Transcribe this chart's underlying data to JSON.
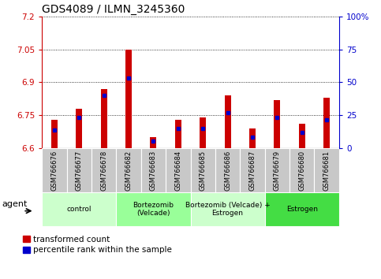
{
  "title": "GDS4089 / ILMN_3245360",
  "samples": [
    "GSM766676",
    "GSM766677",
    "GSM766678",
    "GSM766682",
    "GSM766683",
    "GSM766684",
    "GSM766685",
    "GSM766686",
    "GSM766687",
    "GSM766679",
    "GSM766680",
    "GSM766681"
  ],
  "red_values": [
    6.73,
    6.78,
    6.87,
    7.05,
    6.65,
    6.73,
    6.74,
    6.84,
    6.69,
    6.82,
    6.71,
    6.83
  ],
  "blue_values": [
    6.68,
    6.74,
    6.84,
    6.92,
    6.63,
    6.69,
    6.69,
    6.76,
    6.65,
    6.74,
    6.67,
    6.73
  ],
  "ylim_left": [
    6.6,
    7.2
  ],
  "ylim_right": [
    0,
    100
  ],
  "yticks_left": [
    6.6,
    6.75,
    6.9,
    7.05,
    7.2
  ],
  "yticks_right": [
    0,
    25,
    50,
    75,
    100
  ],
  "ytick_labels_left": [
    "6.6",
    "6.75",
    "6.9",
    "7.05",
    "7.2"
  ],
  "ytick_labels_right": [
    "0",
    "25",
    "50",
    "75",
    "100%"
  ],
  "groups": [
    {
      "label": "control",
      "start": 0,
      "end": 3,
      "color": "#ccffcc"
    },
    {
      "label": "Bortezomib\n(Velcade)",
      "start": 3,
      "end": 6,
      "color": "#99ff99"
    },
    {
      "label": "Bortezomib (Velcade) +\nEstrogen",
      "start": 6,
      "end": 9,
      "color": "#ccffcc"
    },
    {
      "label": "Estrogen",
      "start": 9,
      "end": 12,
      "color": "#44dd44"
    }
  ],
  "baseline": 6.6,
  "red_color": "#cc0000",
  "blue_color": "#0000cc",
  "legend_red": "transformed count",
  "legend_blue": "percentile rank within the sample",
  "agent_label": "agent",
  "left_color": "#cc0000",
  "right_color": "#0000cc",
  "bar_width": 0.25
}
